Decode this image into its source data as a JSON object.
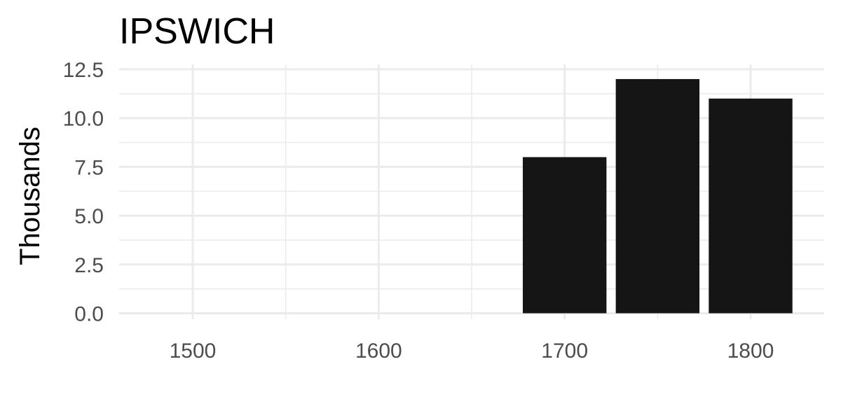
{
  "chart_data": {
    "type": "bar",
    "title": "IPSWICH",
    "xlabel": "",
    "ylabel": "Thousands",
    "x": [
      1700,
      1750,
      1800
    ],
    "values": [
      8,
      12,
      11
    ],
    "bar_width_years": 45,
    "xlim": [
      1460,
      1840
    ],
    "ylim": [
      0,
      12.5
    ],
    "x_ticks": [
      1500,
      1600,
      1700,
      1800
    ],
    "x_tick_labels": [
      "1500",
      "1600",
      "1700",
      "1800"
    ],
    "y_ticks": [
      0,
      2.5,
      5,
      7.5,
      10,
      12.5
    ],
    "y_tick_labels": [
      "0.0",
      "2.5",
      "5.0",
      "7.5",
      "10.0",
      "12.5"
    ],
    "bar_color": "#151515",
    "grid_color": "#ebebeb",
    "grid": true,
    "legend": "none"
  }
}
